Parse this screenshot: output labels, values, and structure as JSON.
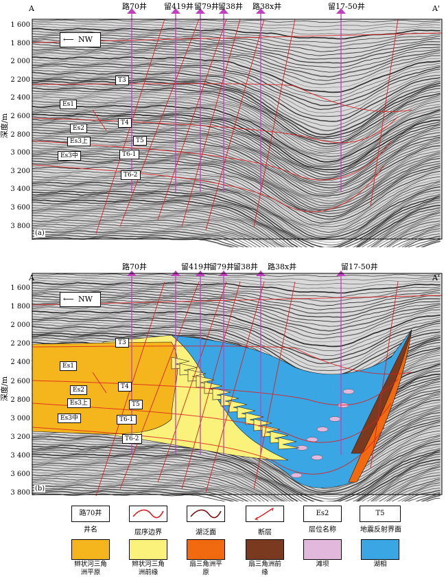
{
  "profile": {
    "start_label": "A",
    "end_label": "A'"
  },
  "orientation_label": "NW",
  "y_axis": {
    "title": "深度/m",
    "ticks": [
      "1 600",
      "1 800",
      "2 000",
      "2 200",
      "2 400",
      "2 600",
      "2 800",
      "3 000",
      "3 200",
      "3 400",
      "3 600",
      "3 800"
    ]
  },
  "wells": [
    "路70井",
    "留419井",
    "留79井",
    "留38井",
    "路38x井",
    "留17-50井"
  ],
  "panels": [
    {
      "tag": "(a)",
      "horizons": [
        "T3",
        "Es1",
        "T4",
        "Es2",
        "T5",
        "Es3上",
        "T6-1",
        "Es3中",
        "T6-2"
      ]
    },
    {
      "tag": "(b)",
      "horizons": [
        "T3",
        "Es1",
        "T4",
        "Es2",
        "Es3上",
        "T5",
        "Es3中",
        "T6-1",
        "T6-2"
      ]
    }
  ],
  "legend": [
    {
      "sample": "路70井",
      "caption": "井名"
    },
    {
      "sample": "",
      "caption": "层序边界"
    },
    {
      "sample": "",
      "caption": "湖泛面"
    },
    {
      "sample": "",
      "caption": "断层"
    },
    {
      "sample": "Es2",
      "caption": "层位名称"
    },
    {
      "sample": "T5",
      "caption": "地震反射界面"
    },
    {
      "sample": "",
      "caption": "辫状河三角洲平原"
    },
    {
      "sample": "",
      "caption": "辫状河三角洲前缘"
    },
    {
      "sample": "",
      "caption": "扇三角洲平原"
    },
    {
      "sample": "",
      "caption": "扇三角洲前缘"
    },
    {
      "sample": "",
      "caption": "滩坝"
    },
    {
      "sample": "",
      "caption": "湖相"
    }
  ],
  "colors": {
    "braided_plain": "#f5b51c",
    "braided_front": "#fbf27c",
    "fan_plain": "#f26a10",
    "fan_front": "#7a3a20",
    "beach_bar": "#e2b8dc",
    "lake": "#3ba6e4",
    "sequence_boundary": "#d92020",
    "well_line": "#c040c0"
  }
}
